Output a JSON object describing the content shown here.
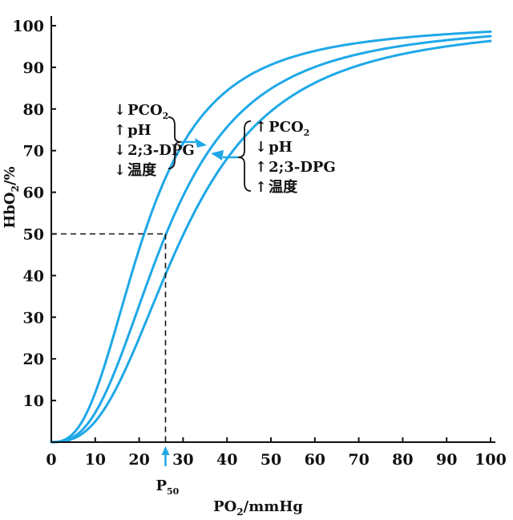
{
  "chart_data": {
    "type": "line",
    "xlabel": "PO₂/mmHg",
    "ylabel": "HbO₂/%",
    "xlim": [
      0,
      100
    ],
    "ylim": [
      0,
      100
    ],
    "xticks": [
      "0",
      "10",
      "20",
      "30",
      "40",
      "50",
      "60",
      "70",
      "80",
      "90",
      "100"
    ],
    "yticks": [
      "10",
      "20",
      "30",
      "40",
      "50",
      "60",
      "70",
      "80",
      "90",
      "100"
    ],
    "grid": false,
    "line_color": "#1fa8e8",
    "series": [
      {
        "p50": 21
      },
      {
        "p50": 26
      },
      {
        "p50": 30
      }
    ],
    "p50": {
      "x": 26,
      "y": 50,
      "label_main": "P",
      "label_sub": "50"
    },
    "left_annotation": [
      {
        "arrow": "↓",
        "text": "PCO",
        "sub": "2"
      },
      {
        "arrow": "↑",
        "text": "pH",
        "sub": ""
      },
      {
        "arrow": "↓",
        "text": "2;3-DPG",
        "sub": ""
      },
      {
        "arrow": "↓",
        "text": "温度",
        "sub": ""
      }
    ],
    "right_annotation": [
      {
        "arrow": "↑",
        "text": "PCO",
        "sub": "2"
      },
      {
        "arrow": "↓",
        "text": "pH",
        "sub": ""
      },
      {
        "arrow": "↑",
        "text": "2;3-DPG",
        "sub": ""
      },
      {
        "arrow": "↑",
        "text": "温度",
        "sub": ""
      }
    ]
  }
}
